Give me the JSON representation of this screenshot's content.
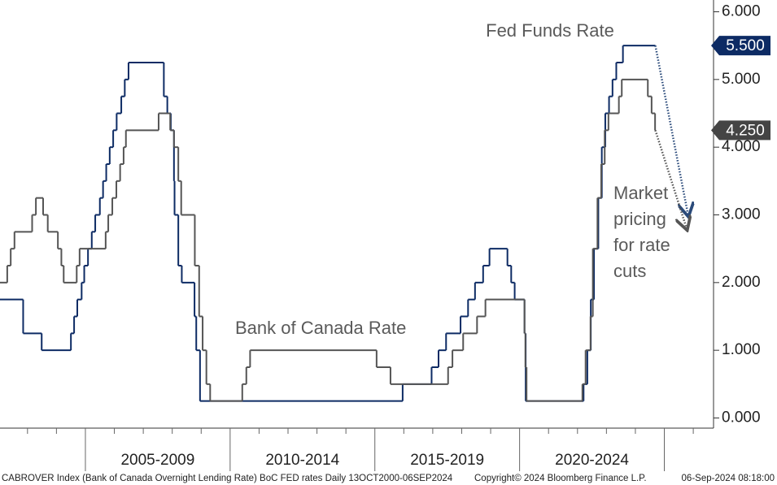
{
  "chart_data": {
    "type": "step-line",
    "xlim": [
      2002.05,
      2026.7
    ],
    "ylim": [
      -0.15,
      6.15
    ],
    "yticks": [
      {
        "value": 0,
        "label": "0.000"
      },
      {
        "value": 1,
        "label": "1.000"
      },
      {
        "value": 2,
        "label": "2.000"
      },
      {
        "value": 3,
        "label": "3.000"
      },
      {
        "value": 4,
        "label": "4.000"
      },
      {
        "value": 5,
        "label": "5.000"
      },
      {
        "value": 6,
        "label": "6.000"
      }
    ],
    "xticks": [
      2005,
      2010,
      2015,
      2020,
      2025
    ],
    "xminor_ticks": [
      2003,
      2004,
      2006,
      2007,
      2008,
      2009,
      2011,
      2012,
      2013,
      2014,
      2016,
      2017,
      2018,
      2019,
      2021,
      2022,
      2023,
      2024,
      2026
    ],
    "periods": [
      {
        "label": "2005-2009",
        "start": 2005,
        "end": 2010
      },
      {
        "label": "2010-2014",
        "start": 2010,
        "end": 2015
      },
      {
        "label": "2015-2019",
        "start": 2015,
        "end": 2020
      },
      {
        "label": "2020-2024",
        "start": 2020,
        "end": 2025
      }
    ],
    "series": [
      {
        "name": "Fed Funds Rate",
        "color": "#0d2b64",
        "style": "step",
        "tag": {
          "value": 5.5,
          "label": "5.500"
        },
        "x": [
          2002.05,
          2002.85,
          2003.49,
          2004.5,
          2004.61,
          2004.72,
          2004.87,
          2004.96,
          2005.09,
          2005.22,
          2005.34,
          2005.5,
          2005.61,
          2005.72,
          2005.84,
          2005.96,
          2006.08,
          2006.24,
          2006.36,
          2006.49,
          2007.71,
          2007.83,
          2007.95,
          2008.06,
          2008.08,
          2008.21,
          2008.33,
          2008.77,
          2008.83,
          2008.96,
          2015.96,
          2016.96,
          2017.2,
          2017.46,
          2017.96,
          2018.22,
          2018.46,
          2018.74,
          2018.96,
          2019.58,
          2019.71,
          2019.83,
          2020.17,
          2020.21,
          2022.21,
          2022.34,
          2022.46,
          2022.57,
          2022.72,
          2022.84,
          2022.96,
          2023.09,
          2023.21,
          2023.34,
          2023.57,
          2024.68
        ],
        "values": [
          1.75,
          1.25,
          1.0,
          1.25,
          1.5,
          1.75,
          2.0,
          2.25,
          2.5,
          2.75,
          3.0,
          3.25,
          3.5,
          3.75,
          4.0,
          4.25,
          4.5,
          4.75,
          5.0,
          5.25,
          4.75,
          4.5,
          4.25,
          3.5,
          3.0,
          2.25,
          2.0,
          1.5,
          1.0,
          0.25,
          0.5,
          0.75,
          1.0,
          1.25,
          1.5,
          1.75,
          2.0,
          2.25,
          2.5,
          2.25,
          2.0,
          1.75,
          1.25,
          0.25,
          0.5,
          1.0,
          1.75,
          2.5,
          3.25,
          4.0,
          4.5,
          4.75,
          5.0,
          5.25,
          5.5,
          5.5
        ]
      },
      {
        "name": "Bank of Canada Rate",
        "color": "#555555",
        "style": "step",
        "tag": {
          "value": 4.25,
          "label": "4.250"
        },
        "x": [
          2002.05,
          2002.3,
          2002.42,
          2002.55,
          2003.16,
          2003.29,
          2003.54,
          2003.7,
          2004.05,
          2004.17,
          2004.25,
          2004.7,
          2004.8,
          2005.7,
          2005.79,
          2005.93,
          2006.07,
          2006.2,
          2006.32,
          2006.4,
          2007.53,
          2007.93,
          2008.06,
          2008.21,
          2008.31,
          2008.78,
          2008.93,
          2009.05,
          2009.18,
          2009.31,
          2010.42,
          2010.56,
          2010.69,
          2015.06,
          2015.54,
          2017.53,
          2017.68,
          2018.05,
          2018.53,
          2018.82,
          2020.17,
          2020.2,
          2020.24,
          2022.17,
          2022.28,
          2022.45,
          2022.53,
          2022.69,
          2022.82,
          2022.94,
          2023.07,
          2023.43,
          2023.53,
          2024.43,
          2024.56,
          2024.68,
          2024.69
        ],
        "values": [
          2.0,
          2.25,
          2.5,
          2.75,
          3.0,
          3.25,
          3.0,
          2.75,
          2.5,
          2.25,
          2.0,
          2.25,
          2.5,
          2.75,
          3.0,
          3.25,
          3.5,
          3.75,
          4.0,
          4.25,
          4.5,
          4.25,
          4.0,
          3.5,
          3.0,
          2.25,
          1.5,
          1.0,
          0.5,
          0.25,
          0.5,
          0.75,
          1.0,
          0.75,
          0.5,
          0.75,
          1.0,
          1.25,
          1.5,
          1.75,
          1.25,
          0.75,
          0.25,
          0.5,
          1.0,
          1.5,
          2.5,
          3.25,
          3.75,
          4.25,
          4.5,
          4.75,
          5.0,
          4.75,
          4.5,
          4.25,
          4.25
        ]
      },
      {
        "color": "#2a4a7a",
        "style": "dotted",
        "x": [
          2024.69,
          2025.82
        ],
        "values": [
          5.5,
          3.0
        ]
      },
      {
        "color": "#555555",
        "style": "dotted",
        "x": [
          2024.69,
          2025.77
        ],
        "values": [
          4.25,
          2.8
        ]
      }
    ],
    "annotations": [
      {
        "lines": [
          "Fed Funds Rate"
        ]
      },
      {
        "lines": [
          "Bank of Canada Rate"
        ]
      },
      {
        "lines": [
          "Market",
          "pricing",
          "for rate",
          "cuts"
        ]
      }
    ],
    "footer": [
      "CABROVER Index (Bank of Canada Overnight Lending Rate) BoC FED rates  Daily 13OCT2000-06SEP2024",
      "Copyright© 2024 Bloomberg Finance L.P.",
      "06-Sep-2024 08:18:00"
    ]
  }
}
